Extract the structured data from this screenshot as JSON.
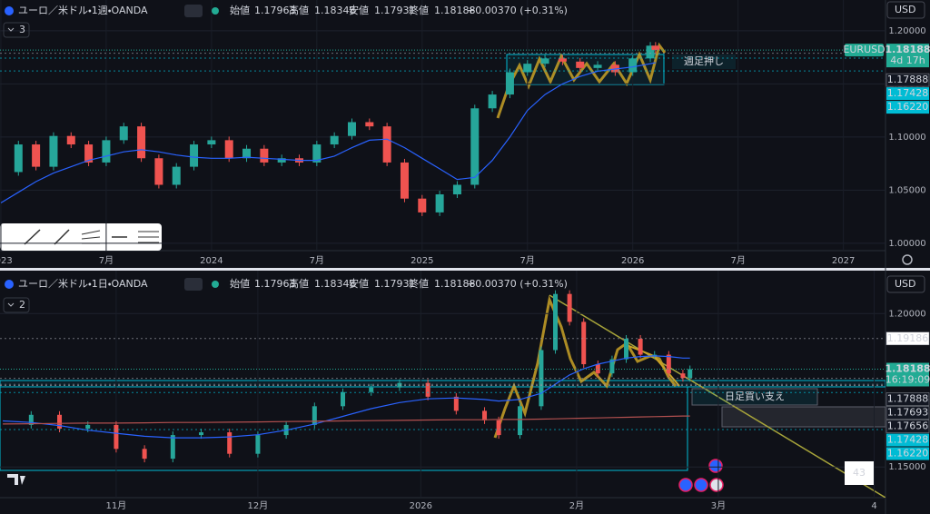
{
  "chart_data": [
    {
      "type": "line",
      "title": "ユーロ／米ドル・1週・OANDA",
      "ohlc": [
        {
          "label": "始値",
          "value": 1.17963
        },
        {
          "label": "高値",
          "value": 1.18348
        },
        {
          "label": "安値",
          "value": 1.17931
        },
        {
          "label": "終値",
          "value": 1.18188
        }
      ],
      "change": "+0.00370 (+0.31%)",
      "indicator_count": 3,
      "currency": "USD",
      "symbol_tag": "EURUSD",
      "last_price": 1.18188,
      "countdown": "4d 17h",
      "price_labels": [
        1.17888,
        1.17428,
        {
          "value": 1.1622,
          "label": "1.16220"
        }
      ],
      "annotation": "週足押し",
      "x": [
        0,
        1,
        2,
        3,
        4,
        5,
        6,
        7,
        8,
        9,
        10,
        11,
        12,
        13,
        14,
        15,
        16,
        17,
        18,
        19,
        20,
        21,
        22,
        23,
        24,
        25,
        26,
        27,
        28,
        29,
        30,
        31,
        32,
        33,
        34,
        35,
        36,
        37,
        37.3
      ],
      "xlim": [
        -0.05,
        50.4
      ],
      "xticks": [
        {
          "value": 0,
          "label": "2023"
        },
        {
          "value": 6,
          "label": "7月"
        },
        {
          "value": 12,
          "label": "2024"
        },
        {
          "value": 18,
          "label": "7月"
        },
        {
          "value": 24,
          "label": "2025"
        },
        {
          "value": 30,
          "label": "7月"
        },
        {
          "value": 36,
          "label": "2026"
        },
        {
          "value": 42,
          "label": "7月"
        },
        {
          "value": 48,
          "label": "2027"
        }
      ],
      "ylim": [
        0.993,
        1.229
      ],
      "yticks": [
        {
          "value": 1.2,
          "label": "1.20000"
        },
        {
          "value": 1.15,
          "label": "1.15000"
        },
        {
          "value": 1.1,
          "label": "1.10000"
        },
        {
          "value": 1.05,
          "label": "1.05000"
        },
        {
          "value": 1,
          "label": "1.00000"
        }
      ],
      "series": [
        {
          "color": "#26a69a",
          "down_color": "#ef5350",
          "values": [
            1.067,
            1.093,
            1.072,
            1.101,
            1.093,
            1.076,
            1.097,
            1.11,
            1.08,
            1.055,
            1.072,
            1.093,
            1.097,
            1.08,
            1.089,
            1.076,
            1.08,
            1.076,
            1.093,
            1.101,
            1.114,
            1.11,
            1.076,
            1.042,
            1.029,
            1.046,
            1.055,
            1.127,
            1.14,
            1.161,
            1.169,
            1.174,
            1.171,
            1.165,
            1.168,
            1.161,
            1.174,
            1.186,
            1.18188
          ]
        },
        {
          "color": "#2962ff",
          "values": [
            1.038,
            1.048,
            1.058,
            1.066,
            1.072,
            1.078,
            1.082,
            1.086,
            1.088,
            1.086,
            1.083,
            1.081,
            1.08,
            1.08,
            1.081,
            1.08,
            1.079,
            1.078,
            1.078,
            1.082,
            1.09,
            1.097,
            1.098,
            1.09,
            1.08,
            1.07,
            1.06,
            1.062,
            1.078,
            1.1,
            1.125,
            1.14,
            1.15,
            1.157,
            1.162,
            1.164,
            1.166,
            1.169,
            1.17
          ]
        }
      ]
    },
    {
      "type": "line",
      "title": "ユーロ／米ドル・1日・OANDA",
      "ohlc": [
        {
          "label": "始値",
          "value": 1.17963
        },
        {
          "label": "高値",
          "value": 1.18348
        },
        {
          "label": "安値",
          "value": 1.17931
        },
        {
          "label": "終値",
          "value": 1.18188
        }
      ],
      "change": "+0.00370 (+0.31%)",
      "indicator_count": 2,
      "currency": "USD",
      "last_price": 1.18188,
      "countdown": "16:19:09",
      "price_labels": [
        1.19186,
        1.17888,
        1.17693,
        1.17656,
        1.17428,
        {
          "value": 1.1622,
          "label": "1.16220"
        }
      ],
      "annotation": "日足買い支え",
      "badge": 43,
      "x": [
        -16,
        -12,
        -8,
        -4,
        0,
        4,
        8,
        12,
        16,
        20,
        24,
        28,
        32,
        36,
        40,
        44,
        48,
        52,
        54,
        57,
        60,
        62,
        64,
        66,
        68,
        70,
        72,
        74,
        76,
        78,
        80,
        81
      ],
      "xlim": [
        -16.4,
        108.6
      ],
      "xticks": [
        {
          "value": 0,
          "label": "11月"
        },
        {
          "value": 20,
          "label": "12月"
        },
        {
          "value": 43,
          "label": "2026"
        },
        {
          "value": 65,
          "label": "2月"
        },
        {
          "value": 85,
          "label": "3月"
        },
        {
          "value": 107,
          "label": "4"
        }
      ],
      "ylim": [
        1.14,
        1.214
      ],
      "yticks": [
        {
          "value": 1.2,
          "label": "1.20000"
        },
        {
          "value": 1.15,
          "label": "1.15000"
        }
      ],
      "series": [
        {
          "color": "#26a69a",
          "down_color": "#ef5350",
          "values": [
            1.1637,
            1.167,
            1.1625,
            1.1637,
            1.1559,
            1.1527,
            1.1604,
            1.1613,
            1.1543,
            1.1604,
            1.1637,
            1.1698,
            1.1744,
            1.1759,
            1.1774,
            1.1729,
            1.1683,
            1.1652,
            1.1604,
            1.1698,
            1.1881,
            1.2064,
            1.1973,
            1.1835,
            1.1805,
            1.1851,
            1.1918,
            1.1866,
            1.1866,
            1.1805,
            1.179,
            1.18188
          ]
        },
        {
          "color": "#2962ff",
          "values": [
            1.165,
            1.1645,
            1.1635,
            1.162,
            1.161,
            1.16,
            1.1595,
            1.1595,
            1.1598,
            1.1605,
            1.162,
            1.164,
            1.1665,
            1.169,
            1.171,
            1.1722,
            1.1725,
            1.172,
            1.1715,
            1.172,
            1.174,
            1.177,
            1.18,
            1.182,
            1.1835,
            1.1845,
            1.1855,
            1.186,
            1.1862,
            1.186,
            1.1855,
            1.1855
          ]
        },
        {
          "color": "#b2504f",
          "values": [
            1.164,
            1.1641,
            1.1642,
            1.1643,
            1.1643,
            1.1644,
            1.1645,
            1.1645,
            1.1646,
            1.1647,
            1.1648,
            1.1649,
            1.165,
            1.1651,
            1.1652,
            1.1653,
            1.1654,
            1.1654,
            1.1655,
            1.1655,
            1.1656,
            1.1657,
            1.1658,
            1.1659,
            1.166,
            1.1661,
            1.1662,
            1.1663,
            1.1664,
            1.1665,
            1.1666,
            1.1666
          ]
        }
      ]
    }
  ]
}
